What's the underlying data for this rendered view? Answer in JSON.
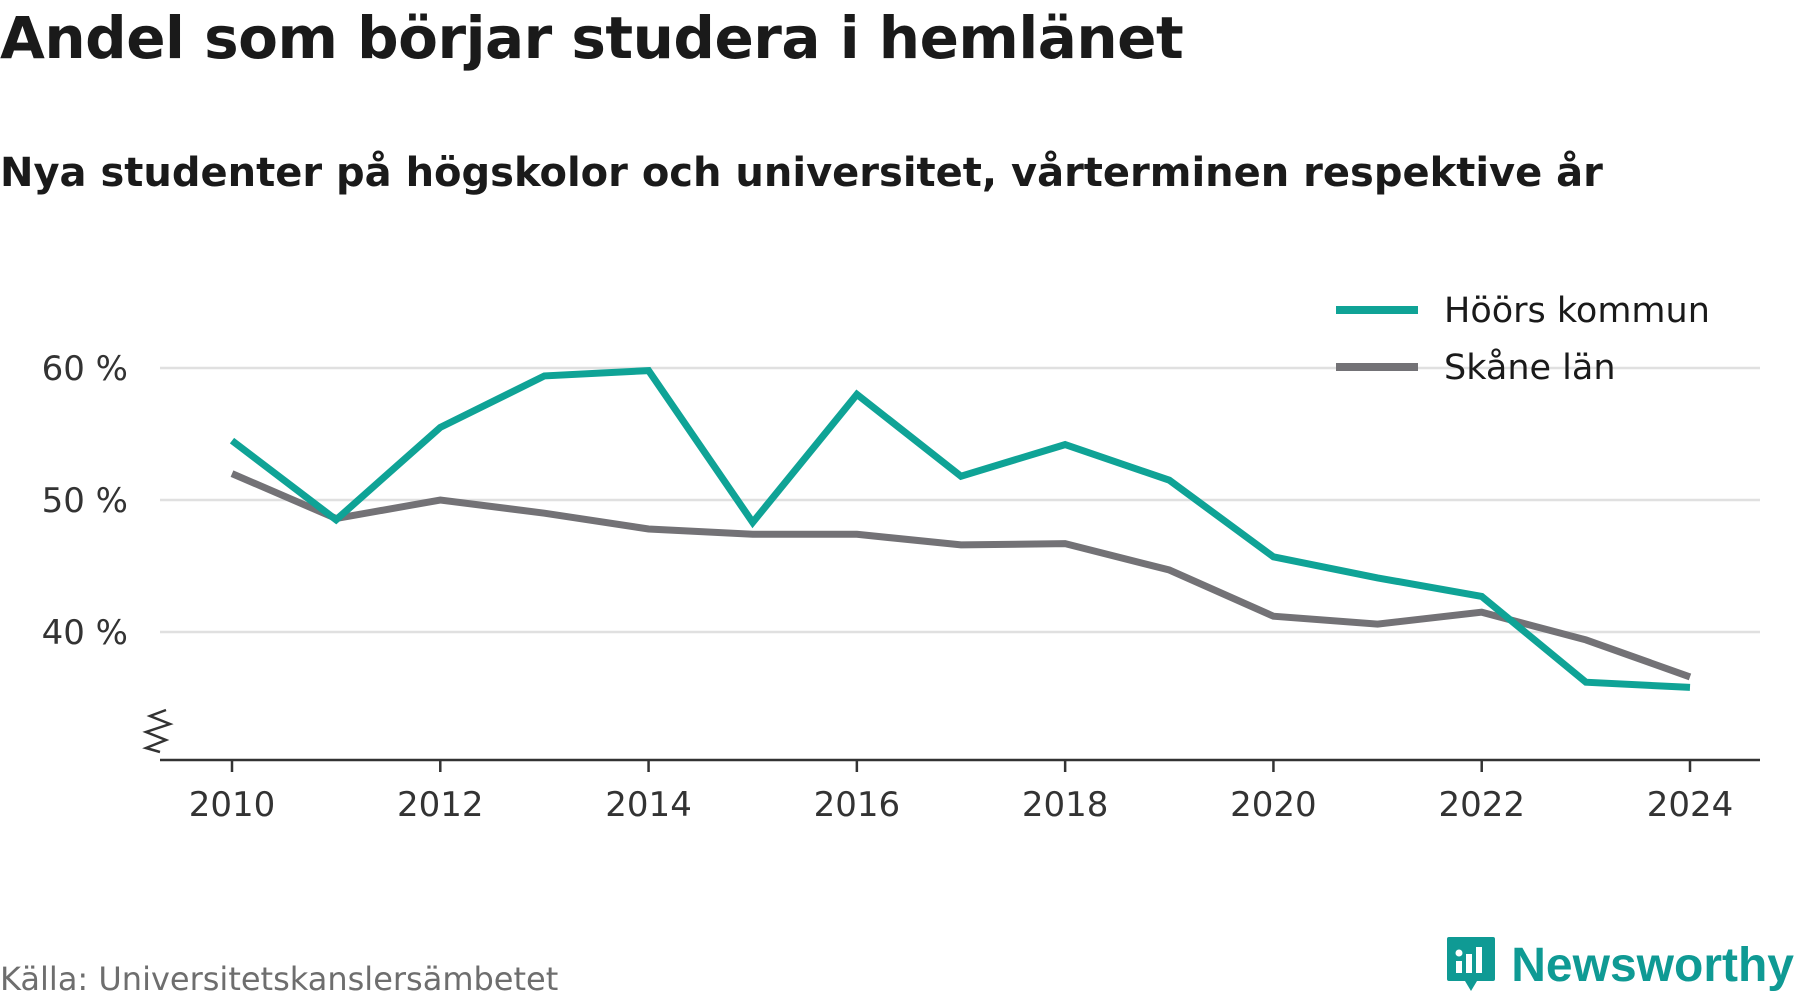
{
  "title": "Andel som börjar studera i hemlänet",
  "subtitle": "Nya studenter på högskolor och universitet, vårterminen respektive år",
  "source": "Källa: Universitetskanslersämbetet",
  "brand": "Newsworthy",
  "colors": {
    "accent": "#0fa396",
    "secondary": "#737276",
    "grid": "#e0e0e0",
    "axis": "#333333",
    "brand": "#0f9a94"
  },
  "chart_data": {
    "type": "line",
    "x": [
      2010,
      2011,
      2012,
      2013,
      2014,
      2015,
      2016,
      2017,
      2018,
      2019,
      2020,
      2021,
      2022,
      2023,
      2024
    ],
    "x_ticks": [
      "2010",
      "2012",
      "2014",
      "2016",
      "2018",
      "2020",
      "2022",
      "2024"
    ],
    "y_ticks": [
      "60 %",
      "50 %",
      "40 %"
    ],
    "ylim": [
      30,
      62
    ],
    "y_axis_break": true,
    "grid": "horizontal",
    "legend_position": "top-right",
    "series": [
      {
        "name": "Höörs kommun",
        "color": "#0fa396",
        "values": [
          54.5,
          48.5,
          55.5,
          59.4,
          59.8,
          48.3,
          58.0,
          51.8,
          54.2,
          51.5,
          45.7,
          44.1,
          42.7,
          36.2,
          35.8
        ]
      },
      {
        "name": "Skåne län",
        "color": "#737276",
        "values": [
          52.0,
          48.6,
          50.0,
          49.0,
          47.8,
          47.4,
          47.4,
          46.6,
          46.7,
          44.7,
          41.2,
          40.6,
          41.5,
          39.4,
          36.6
        ]
      }
    ]
  }
}
